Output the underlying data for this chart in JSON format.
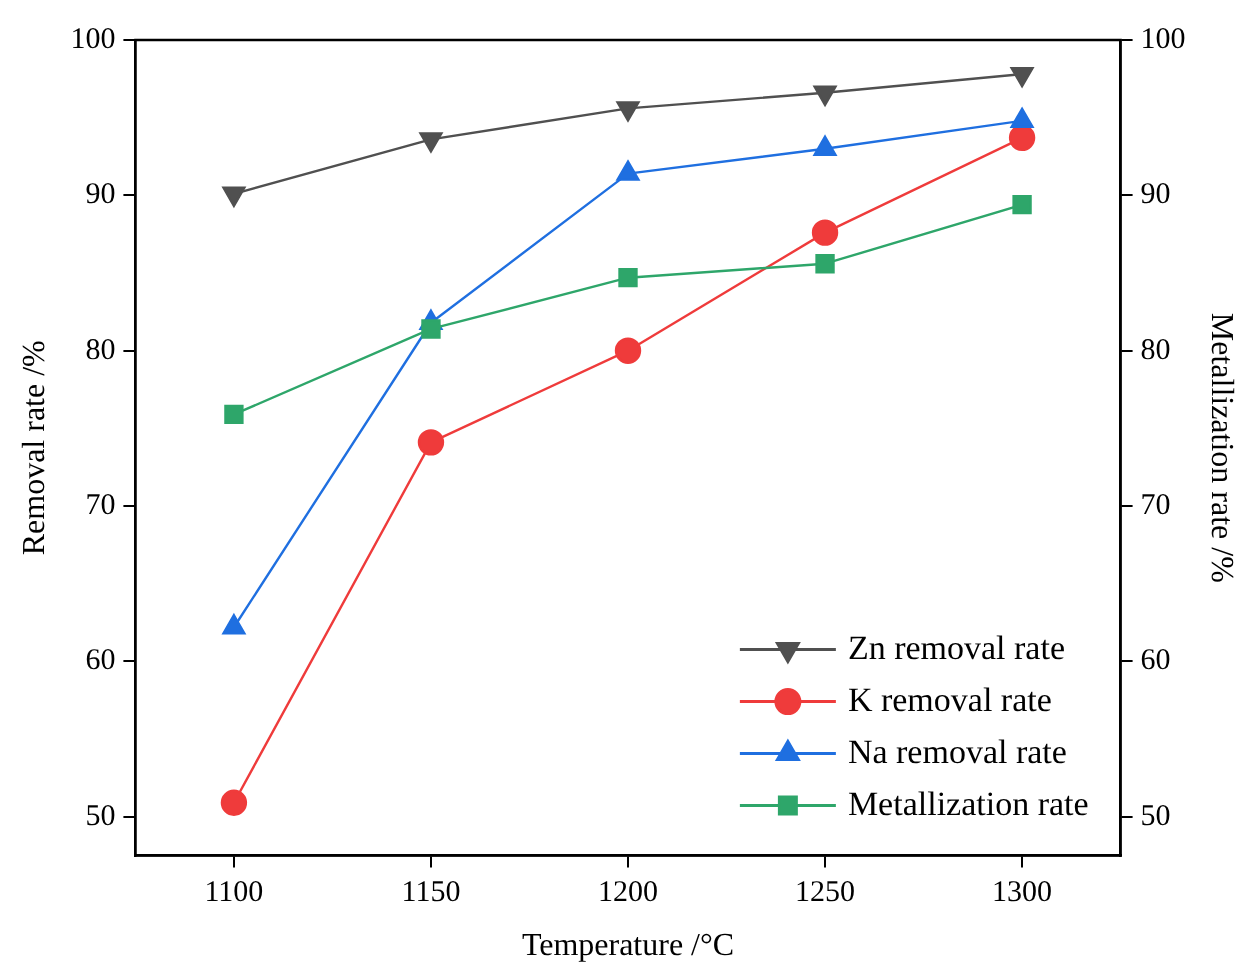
{
  "chart_data": {
    "type": "line",
    "xlabel": "Temperature /°C",
    "ylabel": "Removal rate /%",
    "y2label": "Metallization rate /%",
    "x": [
      1100,
      1150,
      1200,
      1250,
      1300
    ],
    "xlim": [
      1075,
      1325
    ],
    "xticks": [
      1100,
      1150,
      1200,
      1250,
      1300
    ],
    "ylim": [
      47.5,
      100
    ],
    "yticks": [
      50,
      60,
      70,
      80,
      90,
      100
    ],
    "y2lim": [
      47.5,
      100
    ],
    "y2ticks": [
      50,
      60,
      70,
      80,
      90,
      100
    ],
    "grid": false,
    "legend": "bottom right",
    "line_style": "solid",
    "series": [
      {
        "name": "Zn removal rate",
        "color": "#505050",
        "marker": "triangle-down",
        "values": [
          90.1,
          93.6,
          95.6,
          96.6,
          97.8
        ]
      },
      {
        "name": "K removal rate",
        "color": "#ef3b3b",
        "marker": "circle",
        "values": [
          50.9,
          74.1,
          80.0,
          87.6,
          93.7
        ]
      },
      {
        "name": "Na removal rate",
        "color": "#1f6fe0",
        "marker": "triangle",
        "values": [
          62.2,
          81.8,
          91.4,
          93.0,
          94.8
        ]
      },
      {
        "name": "Metallization rate",
        "color": "#2ea66a",
        "marker": "square",
        "axis": "y2",
        "values": [
          75.9,
          81.4,
          84.7,
          85.6,
          89.4
        ]
      }
    ]
  }
}
